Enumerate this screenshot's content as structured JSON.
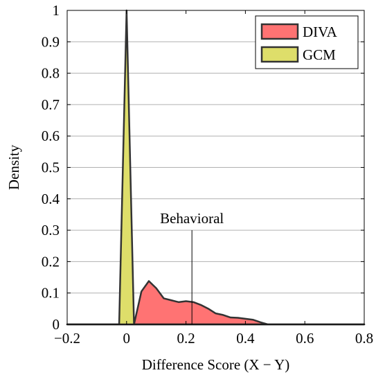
{
  "chart_data": {
    "type": "area",
    "title": "",
    "xlabel": "Difference Score (X − Y)",
    "ylabel": "Density",
    "xlim": [
      -0.2,
      0.8
    ],
    "ylim": [
      0,
      1
    ],
    "x_ticks": [
      -0.2,
      0,
      0.2,
      0.4,
      0.6,
      0.8
    ],
    "x_tick_labels": [
      "−0.2",
      "0",
      "0.2",
      "0.4",
      "0.6",
      "0.8"
    ],
    "y_ticks": [
      0,
      0.1,
      0.2,
      0.3,
      0.4,
      0.5,
      0.6,
      0.7,
      0.8,
      0.9,
      1
    ],
    "y_tick_labels": [
      "0",
      "0.1",
      "0.2",
      "0.3",
      "0.4",
      "0.5",
      "0.6",
      "0.7",
      "0.8",
      "0.9",
      "1"
    ],
    "grid": "horizontal",
    "legend_position": "top-right",
    "series": [
      {
        "name": "DIVA",
        "color": "#ff7373",
        "x": [
          -0.2,
          0.025,
          0.05,
          0.075,
          0.1,
          0.125,
          0.15,
          0.175,
          0.2,
          0.225,
          0.25,
          0.275,
          0.3,
          0.325,
          0.35,
          0.375,
          0.4,
          0.425,
          0.45,
          0.475,
          0.8
        ],
        "y": [
          0,
          0,
          0.105,
          0.138,
          0.115,
          0.083,
          0.077,
          0.071,
          0.074,
          0.071,
          0.062,
          0.05,
          0.035,
          0.03,
          0.022,
          0.021,
          0.018,
          0.015,
          0.007,
          0,
          0
        ]
      },
      {
        "name": "GCM",
        "color": "#dede6a",
        "x": [
          -0.2,
          -0.025,
          0,
          0.025,
          0.8
        ],
        "y": [
          0,
          0,
          1.0,
          0,
          0
        ]
      }
    ],
    "annotations": [
      {
        "text": "Behavioral",
        "x": 0.22,
        "y_top": 0.3
      }
    ]
  }
}
